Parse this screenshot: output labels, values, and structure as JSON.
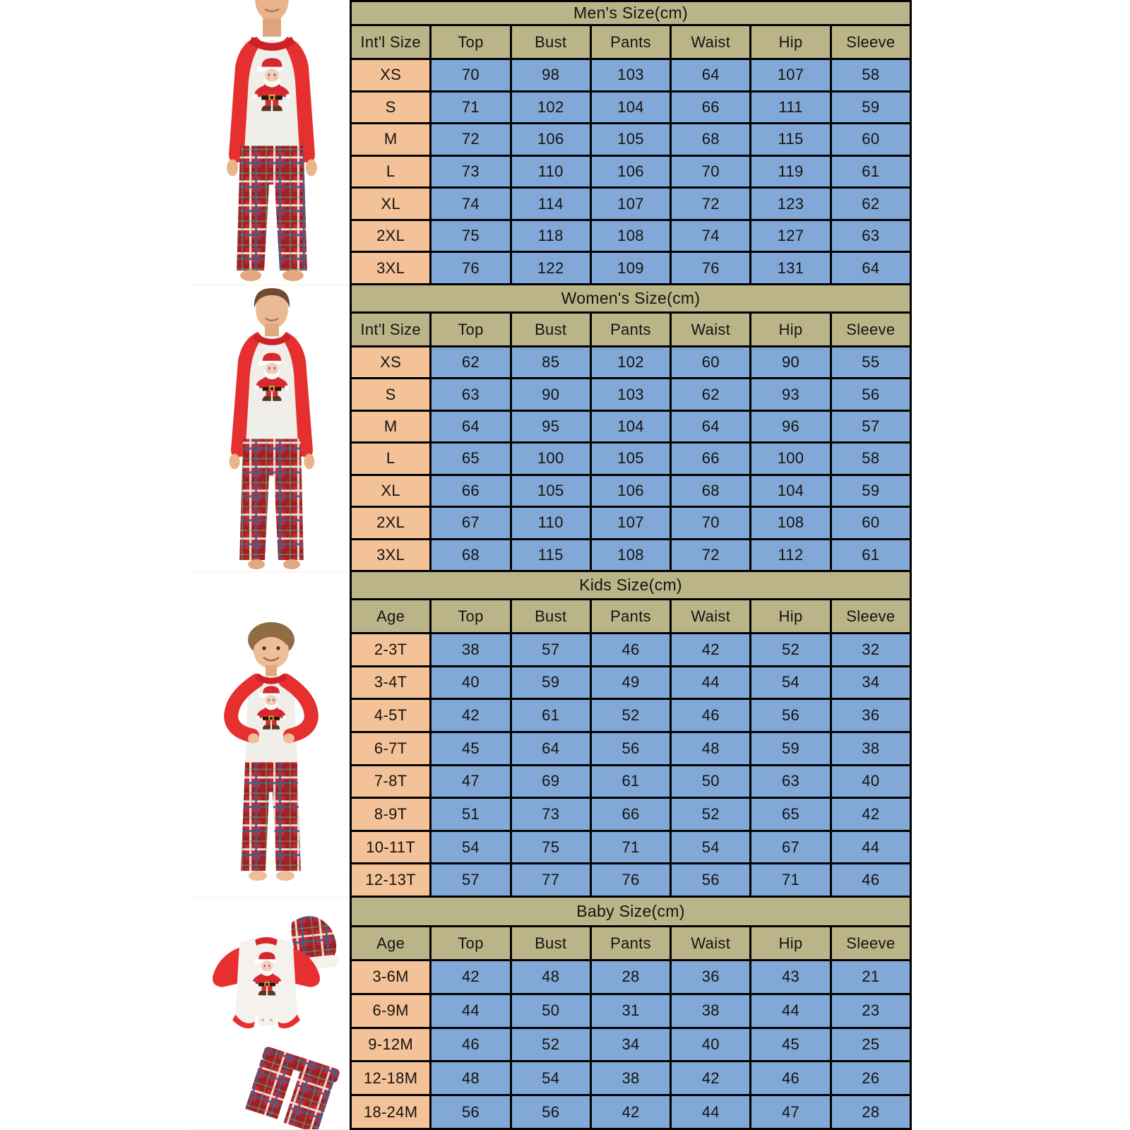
{
  "page": {
    "background": "#FFFFFF",
    "description_unit": "cm"
  },
  "colors": {
    "table_header_bg": "#BCB489",
    "size_column_bg": "#F4C298",
    "data_cell_bg": "#82A8D8",
    "table_border": "#000000",
    "text": "#15140F",
    "pajama_red": "#E5302F",
    "plaid_base_red": "#C12B31",
    "shirt_gray": "#F0EEE9",
    "skin": "#E9B48C"
  },
  "photos": [
    {
      "id": "men",
      "name": "men-pajamas-photo",
      "depicts": "man wearing red raglan Santa print top and red plaid pajama pants"
    },
    {
      "id": "women",
      "name": "women-pajamas-photo",
      "depicts": "woman wearing red raglan Santa print top and red plaid pajama pants"
    },
    {
      "id": "kids",
      "name": "kids-pajamas-photo",
      "depicts": "boy with hands on hips wearing red raglan Santa print top and red plaid pajama pants"
    },
    {
      "id": "baby",
      "name": "baby-pajamas-photo",
      "depicts": "baby Santa romper flat-lay with plaid pants and plaid hat"
    }
  ],
  "chart_data": [
    {
      "type": "table",
      "title": "Men's Size(cm)",
      "columns": [
        "Int'l Size",
        "Top",
        "Bust",
        "Pants",
        "Waist",
        "Hip",
        "Sleeve"
      ],
      "rows": [
        [
          "XS",
          70,
          98,
          103,
          64,
          107,
          58
        ],
        [
          "S",
          71,
          102,
          104,
          66,
          111,
          59
        ],
        [
          "M",
          72,
          106,
          105,
          68,
          115,
          60
        ],
        [
          "L",
          73,
          110,
          106,
          70,
          119,
          61
        ],
        [
          "XL",
          74,
          114,
          107,
          72,
          123,
          62
        ],
        [
          "2XL",
          75,
          118,
          108,
          74,
          127,
          63
        ],
        [
          "3XL",
          76,
          122,
          109,
          76,
          131,
          64
        ]
      ]
    },
    {
      "type": "table",
      "title": "Women's Size(cm)",
      "columns": [
        "Int'l Size",
        "Top",
        "Bust",
        "Pants",
        "Waist",
        "Hip",
        "Sleeve"
      ],
      "rows": [
        [
          "XS",
          62,
          85,
          102,
          60,
          90,
          55
        ],
        [
          "S",
          63,
          90,
          103,
          62,
          93,
          56
        ],
        [
          "M",
          64,
          95,
          104,
          64,
          96,
          57
        ],
        [
          "L",
          65,
          100,
          105,
          66,
          100,
          58
        ],
        [
          "XL",
          66,
          105,
          106,
          68,
          104,
          59
        ],
        [
          "2XL",
          67,
          110,
          107,
          70,
          108,
          60
        ],
        [
          "3XL",
          68,
          115,
          108,
          72,
          112,
          61
        ]
      ]
    },
    {
      "type": "table",
      "title": "Kids Size(cm)",
      "columns": [
        "Age",
        "Top",
        "Bust",
        "Pants",
        "Waist",
        "Hip",
        "Sleeve"
      ],
      "rows": [
        [
          "2-3T",
          38,
          57,
          46,
          42,
          52,
          32
        ],
        [
          "3-4T",
          40,
          59,
          49,
          44,
          54,
          34
        ],
        [
          "4-5T",
          42,
          61,
          52,
          46,
          56,
          36
        ],
        [
          "6-7T",
          45,
          64,
          56,
          48,
          59,
          38
        ],
        [
          "7-8T",
          47,
          69,
          61,
          50,
          63,
          40
        ],
        [
          "8-9T",
          51,
          73,
          66,
          52,
          65,
          42
        ],
        [
          "10-11T",
          54,
          75,
          71,
          54,
          67,
          44
        ],
        [
          "12-13T",
          57,
          77,
          76,
          56,
          71,
          46
        ]
      ]
    },
    {
      "type": "table",
      "title": "Baby Size(cm)",
      "columns": [
        "Age",
        "Top",
        "Bust",
        "Pants",
        "Waist",
        "Hip",
        "Sleeve"
      ],
      "rows": [
        [
          "3-6M",
          42,
          48,
          28,
          36,
          43,
          21
        ],
        [
          "6-9M",
          44,
          50,
          31,
          38,
          44,
          23
        ],
        [
          "9-12M",
          46,
          52,
          34,
          40,
          45,
          25
        ],
        [
          "12-18M",
          48,
          54,
          38,
          42,
          46,
          26
        ],
        [
          "18-24M",
          56,
          56,
          42,
          44,
          47,
          28
        ]
      ]
    }
  ]
}
